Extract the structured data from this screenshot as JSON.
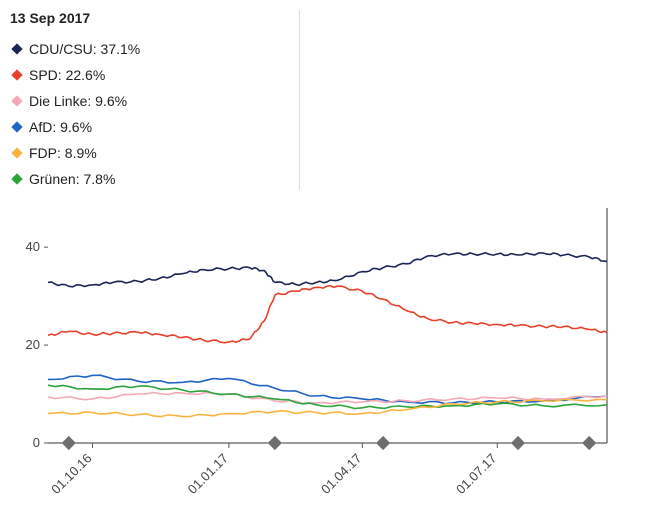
{
  "legend": {
    "date": "13 Sep 2017",
    "entries": [
      {
        "label": "CDU/CSU: 37.1%",
        "color": "#1b2556"
      },
      {
        "label": "SPD: 22.6%",
        "color": "#e8412a"
      },
      {
        "label": "Die Linke: 9.6%",
        "color": "#f4a8b6"
      },
      {
        "label": "AfD: 9.6%",
        "color": "#1f63c5"
      },
      {
        "label": "FDP: 8.9%",
        "color": "#f9b440"
      },
      {
        "label": "Grünen: 7.8%",
        "color": "#2ca33b"
      }
    ]
  },
  "chart_data": {
    "type": "line",
    "y_ticks": [
      "40",
      "20",
      "0"
    ],
    "x_tick_labels": [
      "01.10.16",
      "01.01.17",
      "01.04.17",
      "01.07.17"
    ],
    "ylim": [
      0,
      48
    ],
    "series": [
      {
        "name": "CDU/CSU",
        "color": "#1b2556",
        "x": [
          "2016-09-01",
          "2016-09-15",
          "2016-10-01",
          "2016-10-15",
          "2016-11-01",
          "2016-11-15",
          "2016-12-01",
          "2016-12-15",
          "2017-01-01",
          "2017-01-15",
          "2017-01-25",
          "2017-02-01",
          "2017-02-15",
          "2017-03-01",
          "2017-03-15",
          "2017-04-01",
          "2017-04-15",
          "2017-05-01",
          "2017-05-15",
          "2017-06-01",
          "2017-06-15",
          "2017-07-01",
          "2017-07-15",
          "2017-08-01",
          "2017-08-15",
          "2017-09-01",
          "2017-09-13"
        ],
        "values": [
          32.8,
          32.0,
          32.3,
          32.8,
          33.0,
          33.6,
          34.6,
          35.4,
          35.6,
          35.8,
          35.2,
          32.8,
          32.4,
          32.8,
          33.2,
          35.0,
          35.8,
          36.6,
          38.2,
          38.6,
          38.6,
          38.6,
          38.4,
          38.8,
          38.4,
          38.0,
          37.1
        ]
      },
      {
        "name": "SPD",
        "color": "#e8412a",
        "x": [
          "2016-09-01",
          "2016-09-15",
          "2016-10-01",
          "2016-10-15",
          "2016-11-01",
          "2016-11-15",
          "2016-12-01",
          "2016-12-15",
          "2017-01-01",
          "2017-01-15",
          "2017-01-25",
          "2017-02-01",
          "2017-02-15",
          "2017-03-01",
          "2017-03-15",
          "2017-04-01",
          "2017-04-15",
          "2017-05-01",
          "2017-05-15",
          "2017-06-01",
          "2017-06-15",
          "2017-07-01",
          "2017-07-15",
          "2017-08-01",
          "2017-08-15",
          "2017-09-01",
          "2017-09-13"
        ],
        "values": [
          22.0,
          22.8,
          22.2,
          22.4,
          22.6,
          22.2,
          21.6,
          21.0,
          20.6,
          21.2,
          25.0,
          30.2,
          31.0,
          31.8,
          32.0,
          31.0,
          29.4,
          27.0,
          25.4,
          24.6,
          24.4,
          24.2,
          24.0,
          23.8,
          23.8,
          23.2,
          22.6
        ]
      },
      {
        "name": "AfD",
        "color": "#1f63c5",
        "x": [
          "2016-09-01",
          "2016-10-01",
          "2016-11-01",
          "2016-12-01",
          "2017-01-01",
          "2017-02-01",
          "2017-03-01",
          "2017-04-01",
          "2017-05-01",
          "2017-06-01",
          "2017-07-01",
          "2017-08-01",
          "2017-09-13"
        ],
        "values": [
          13.0,
          13.8,
          12.6,
          12.4,
          13.2,
          11.2,
          9.6,
          9.0,
          8.4,
          8.2,
          8.4,
          8.6,
          9.6
        ]
      },
      {
        "name": "Die Linke",
        "color": "#f4a8b6",
        "x": [
          "2016-09-01",
          "2016-10-01",
          "2016-11-01",
          "2016-12-01",
          "2017-01-01",
          "2017-02-01",
          "2017-03-01",
          "2017-04-01",
          "2017-05-01",
          "2017-06-01",
          "2017-07-01",
          "2017-08-01",
          "2017-09-13"
        ],
        "values": [
          9.4,
          9.0,
          10.0,
          10.2,
          10.0,
          8.6,
          8.2,
          8.4,
          8.6,
          9.0,
          9.2,
          9.0,
          9.6
        ]
      },
      {
        "name": "Grünen",
        "color": "#2ca33b",
        "x": [
          "2016-09-01",
          "2016-10-01",
          "2016-11-01",
          "2016-12-01",
          "2017-01-01",
          "2017-02-01",
          "2017-03-01",
          "2017-04-01",
          "2017-05-01",
          "2017-06-01",
          "2017-07-01",
          "2017-08-01",
          "2017-09-13"
        ],
        "values": [
          11.8,
          11.0,
          11.6,
          10.8,
          10.0,
          9.0,
          7.8,
          7.2,
          7.4,
          7.6,
          8.0,
          7.6,
          7.8
        ]
      },
      {
        "name": "FDP",
        "color": "#f9b440",
        "x": [
          "2016-09-01",
          "2016-10-01",
          "2016-11-01",
          "2016-12-01",
          "2017-01-01",
          "2017-02-01",
          "2017-03-01",
          "2017-04-01",
          "2017-05-01",
          "2017-06-01",
          "2017-07-01",
          "2017-08-01",
          "2017-09-13"
        ],
        "values": [
          6.0,
          6.2,
          5.8,
          5.4,
          6.0,
          6.4,
          6.2,
          6.0,
          6.8,
          8.0,
          8.4,
          8.6,
          8.9
        ]
      }
    ],
    "markers": [
      "2016-09-15",
      "2017-02-01",
      "2017-04-15",
      "2017-07-15",
      "2017-09-01"
    ]
  }
}
